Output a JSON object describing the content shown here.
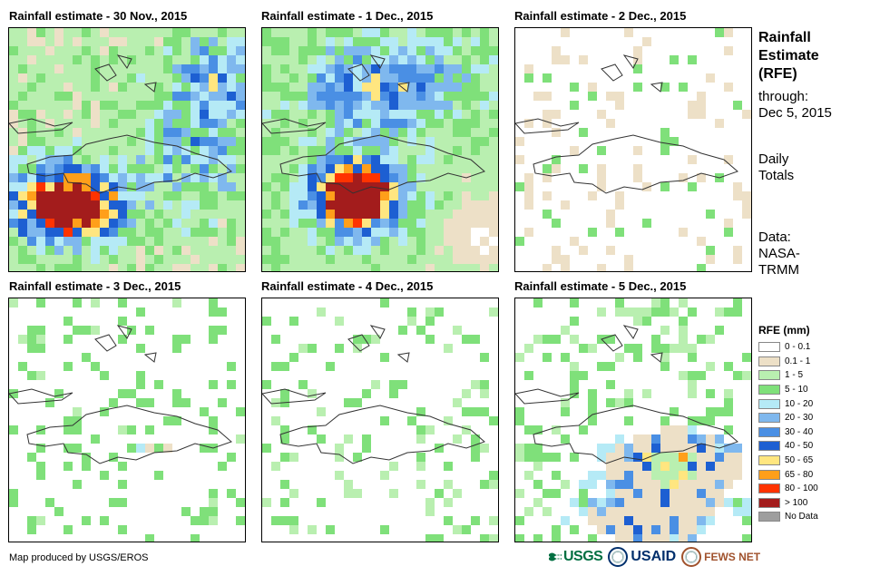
{
  "panels": [
    {
      "id": "p1",
      "title": "Rainfall estimate - 30 Nov., 2015"
    },
    {
      "id": "p2",
      "title": "Rainfall estimate - 1 Dec., 2015"
    },
    {
      "id": "p3",
      "title": "Rainfall estimate - 2 Dec., 2015"
    },
    {
      "id": "p4",
      "title": "Rainfall estimate - 3 Dec., 2015"
    },
    {
      "id": "p5",
      "title": "Rainfall estimate - 4 Dec., 2015"
    },
    {
      "id": "p6",
      "title": "Rainfall estimate - 5 Dec., 2015"
    }
  ],
  "sidebar": {
    "title_line1": "Rainfall",
    "title_line2": "Estimate",
    "title_line3": "(RFE)",
    "through_label": "through:",
    "through_date": "Dec 5, 2015",
    "daily_line1": "Daily",
    "daily_line2": "Totals",
    "data_line1": "Data:",
    "data_line2": "NASA-",
    "data_line3": "TRMM"
  },
  "legend": {
    "title": "RFE (mm)",
    "items": [
      {
        "label": "0 - 0.1",
        "color": "#ffffff"
      },
      {
        "label": "0.1 - 1",
        "color": "#ede0c7"
      },
      {
        "label": "1 - 5",
        "color": "#b9efb0"
      },
      {
        "label": "5 - 10",
        "color": "#7fe07a"
      },
      {
        "label": "10 - 20",
        "color": "#b5eaf6"
      },
      {
        "label": "20 - 30",
        "color": "#7fb8ee"
      },
      {
        "label": "30 - 40",
        "color": "#4a8fe4"
      },
      {
        "label": "40 - 50",
        "color": "#1d5fd2"
      },
      {
        "label": "50 - 65",
        "color": "#ffe680"
      },
      {
        "label": "65 - 80",
        "color": "#ff9f1a"
      },
      {
        "label": "80 - 100",
        "color": "#ff3300"
      },
      {
        "label": "> 100",
        "color": "#a31c1c"
      },
      {
        "label": "No Data",
        "color": "#9e9e9e"
      }
    ]
  },
  "footer": {
    "credit": "Map produced by USGS/EROS"
  },
  "logos": {
    "usgs": "USGS",
    "usaid": "USAID",
    "fews": "FEWS NET"
  }
}
